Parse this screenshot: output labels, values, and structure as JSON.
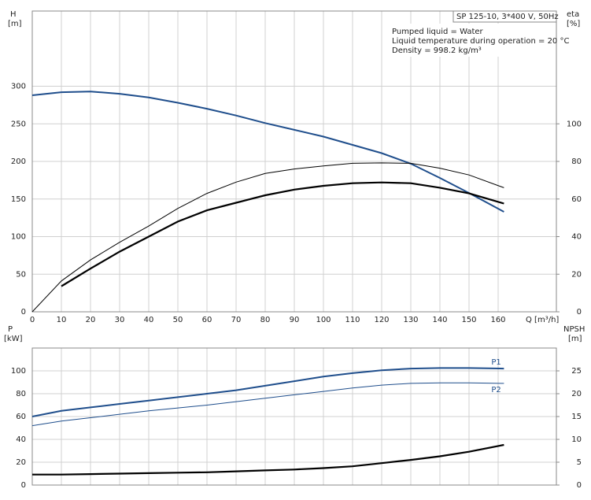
{
  "chart_data": [
    {
      "type": "line",
      "ylabel": "H",
      "yunit": "[m]",
      "y2label": "eta",
      "y2unit": "[%]",
      "xlabel": "Q [m³/h]",
      "info_title": "SP 125-10, 3*400 V, 50Hz",
      "annotations": [
        "Pumped liquid = Water",
        "Liquid temperature during operation = 20 °C",
        "Density = 998.2 kg/m³"
      ],
      "x": [
        0,
        10,
        20,
        30,
        40,
        50,
        60,
        70,
        80,
        90,
        100,
        110,
        120,
        130,
        140,
        150,
        162
      ],
      "xlim": [
        0,
        180
      ],
      "xticks": [
        0,
        10,
        20,
        30,
        40,
        50,
        60,
        70,
        80,
        90,
        100,
        110,
        120,
        130,
        140,
        150,
        160
      ],
      "ylim": [
        0,
        400
      ],
      "yticks": [
        0,
        50,
        100,
        150,
        200,
        250,
        300
      ],
      "y2lim": [
        0,
        160
      ],
      "y2ticks": [
        0,
        20,
        40,
        60,
        80,
        100
      ],
      "grid": true,
      "series": [
        {
          "color": "#1f4e8c",
          "width": 2,
          "values": [
            288,
            292,
            293,
            290,
            285,
            278,
            270,
            261,
            251,
            242,
            233,
            222,
            211,
            197,
            178,
            158,
            133
          ]
        },
        {
          "color": "#000000",
          "width": 1,
          "axis": "y2",
          "values": [
            0,
            16.4,
            27.6,
            37,
            45.6,
            55,
            63,
            69,
            73.6,
            76,
            77.6,
            79,
            79.2,
            79,
            76.4,
            72.8,
            66
          ]
        },
        {
          "color": "#000000",
          "width": 2.2,
          "axis": "y2",
          "values": [
            null,
            13.6,
            23,
            32,
            40,
            48,
            54,
            58,
            62,
            65,
            67,
            68.4,
            68.8,
            68.4,
            66,
            63,
            57.6
          ]
        }
      ]
    },
    {
      "type": "line",
      "ylabel": "P",
      "yunit": "[kW]",
      "y2label": "NPSH",
      "y2unit": "[m]",
      "x": [
        0,
        10,
        20,
        30,
        40,
        50,
        60,
        70,
        80,
        90,
        100,
        110,
        120,
        130,
        140,
        150,
        162
      ],
      "xlim": [
        0,
        180
      ],
      "ylim": [
        0,
        120
      ],
      "yticks": [
        0,
        20,
        40,
        60,
        80,
        100
      ],
      "y2lim": [
        0,
        30
      ],
      "y2ticks": [
        0,
        5,
        10,
        15,
        20,
        25
      ],
      "grid": true,
      "series": [
        {
          "name": "P1",
          "color": "#1f4e8c",
          "width": 2,
          "values": [
            60,
            65,
            68,
            71,
            74,
            77,
            80,
            83,
            87,
            91,
            95,
            98,
            100.5,
            102,
            102.5,
            102.5,
            102
          ]
        },
        {
          "name": "P2",
          "color": "#1f4e8c",
          "width": 1,
          "values": [
            52,
            56,
            59,
            62,
            65,
            67.5,
            70,
            73,
            76,
            79,
            82,
            85,
            87.5,
            89,
            89.5,
            89.5,
            89
          ]
        },
        {
          "color": "#000000",
          "width": 2.2,
          "axis": "y2",
          "values": [
            2.3,
            2.3,
            2.4,
            2.5,
            2.6,
            2.7,
            2.8,
            3,
            3.2,
            3.4,
            3.7,
            4.1,
            4.8,
            5.5,
            6.3,
            7.3,
            8.8
          ]
        }
      ]
    }
  ]
}
